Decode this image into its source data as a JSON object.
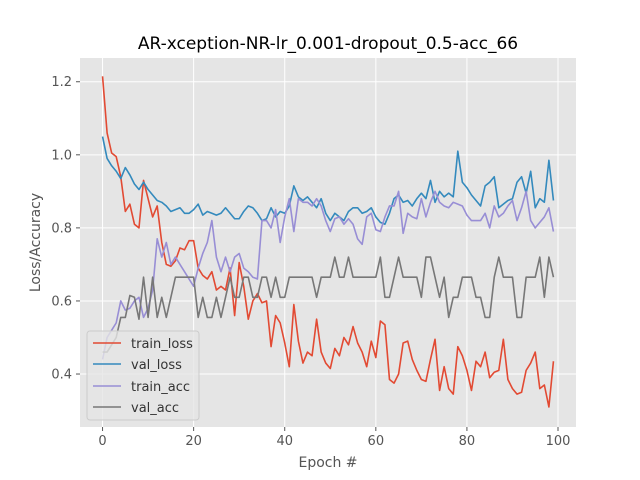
{
  "chart_data": {
    "type": "line",
    "title": "AR-xception-NR-lr_0.001-dropout_0.5-acc_66",
    "xlabel": "Epoch #",
    "ylabel": "Loss/Accuracy",
    "xlim": [
      -4.95,
      103.95
    ],
    "ylim": [
      0.255,
      1.265
    ],
    "xticks": [
      0,
      20,
      40,
      60,
      80,
      100
    ],
    "yticks": [
      0.4,
      0.6,
      0.8,
      1.0,
      1.2
    ],
    "xtick_labels": [
      "0",
      "20",
      "40",
      "60",
      "80",
      "100"
    ],
    "ytick_labels": [
      "0.4",
      "0.6",
      "0.8",
      "1.0",
      "1.2"
    ],
    "grid": true,
    "legend_position": "lower left",
    "series": [
      {
        "name": "train_loss",
        "color": "#E24A33",
        "values": [
          1.215,
          1.06,
          1.005,
          0.995,
          0.94,
          0.845,
          0.865,
          0.81,
          0.8,
          0.93,
          0.88,
          0.83,
          0.86,
          0.76,
          0.7,
          0.695,
          0.71,
          0.745,
          0.74,
          0.765,
          0.765,
          0.69,
          0.67,
          0.66,
          0.68,
          0.63,
          0.64,
          0.63,
          0.69,
          0.56,
          0.705,
          0.64,
          0.55,
          0.6,
          0.62,
          0.595,
          0.6,
          0.475,
          0.56,
          0.54,
          0.485,
          0.42,
          0.59,
          0.49,
          0.43,
          0.46,
          0.45,
          0.55,
          0.46,
          0.43,
          0.415,
          0.47,
          0.45,
          0.5,
          0.48,
          0.53,
          0.485,
          0.46,
          0.42,
          0.49,
          0.445,
          0.545,
          0.535,
          0.385,
          0.375,
          0.4,
          0.485,
          0.49,
          0.44,
          0.41,
          0.385,
          0.38,
          0.44,
          0.495,
          0.355,
          0.42,
          0.36,
          0.345,
          0.475,
          0.45,
          0.41,
          0.355,
          0.435,
          0.42,
          0.46,
          0.39,
          0.405,
          0.41,
          0.495,
          0.385,
          0.36,
          0.345,
          0.35,
          0.41,
          0.43,
          0.46,
          0.36,
          0.37,
          0.31,
          0.435
        ]
      },
      {
        "name": "val_loss",
        "color": "#348ABD",
        "values": [
          1.05,
          0.99,
          0.97,
          0.955,
          0.935,
          0.965,
          0.945,
          0.92,
          0.905,
          0.925,
          0.905,
          0.89,
          0.875,
          0.87,
          0.86,
          0.845,
          0.85,
          0.855,
          0.84,
          0.84,
          0.85,
          0.865,
          0.835,
          0.845,
          0.84,
          0.835,
          0.84,
          0.855,
          0.84,
          0.825,
          0.825,
          0.845,
          0.86,
          0.855,
          0.84,
          0.82,
          0.825,
          0.855,
          0.83,
          0.845,
          0.84,
          0.86,
          0.915,
          0.885,
          0.875,
          0.885,
          0.87,
          0.855,
          0.88,
          0.84,
          0.82,
          0.84,
          0.83,
          0.82,
          0.845,
          0.855,
          0.855,
          0.84,
          0.845,
          0.855,
          0.83,
          0.815,
          0.81,
          0.84,
          0.88,
          0.89,
          0.87,
          0.875,
          0.86,
          0.88,
          0.895,
          0.88,
          0.93,
          0.87,
          0.9,
          0.885,
          0.895,
          0.885,
          1.01,
          0.925,
          0.91,
          0.89,
          0.875,
          0.86,
          0.915,
          0.925,
          0.94,
          0.855,
          0.865,
          0.875,
          0.88,
          0.925,
          0.94,
          0.895,
          0.955,
          0.855,
          0.88,
          0.87,
          0.985,
          0.875
        ]
      },
      {
        "name": "train_acc",
        "color": "#988ED5",
        "values": [
          0.44,
          0.5,
          0.52,
          0.54,
          0.6,
          0.575,
          0.58,
          0.6,
          0.61,
          0.555,
          0.58,
          0.63,
          0.77,
          0.72,
          0.76,
          0.7,
          0.72,
          0.7,
          0.68,
          0.66,
          0.64,
          0.69,
          0.73,
          0.76,
          0.82,
          0.72,
          0.68,
          0.72,
          0.68,
          0.72,
          0.73,
          0.69,
          0.68,
          0.665,
          0.66,
          0.82,
          0.82,
          0.8,
          0.85,
          0.76,
          0.83,
          0.88,
          0.79,
          0.88,
          0.87,
          0.87,
          0.86,
          0.88,
          0.86,
          0.82,
          0.79,
          0.825,
          0.83,
          0.81,
          0.825,
          0.81,
          0.77,
          0.755,
          0.83,
          0.84,
          0.795,
          0.79,
          0.83,
          0.86,
          0.86,
          0.9,
          0.785,
          0.84,
          0.83,
          0.825,
          0.88,
          0.83,
          0.87,
          0.9,
          0.87,
          0.86,
          0.855,
          0.87,
          0.865,
          0.86,
          0.835,
          0.82,
          0.82,
          0.82,
          0.84,
          0.8,
          0.86,
          0.83,
          0.84,
          0.86,
          0.875,
          0.82,
          0.855,
          0.9,
          0.82,
          0.8,
          0.815,
          0.83,
          0.855,
          0.79
        ]
      },
      {
        "name": "val_acc",
        "color": "#777777",
        "values": [
          0.46,
          0.46,
          0.48,
          0.5,
          0.555,
          0.555,
          0.615,
          0.61,
          0.55,
          0.665,
          0.555,
          0.665,
          0.555,
          0.61,
          0.555,
          0.61,
          0.665,
          0.665,
          0.665,
          0.665,
          0.665,
          0.555,
          0.61,
          0.555,
          0.555,
          0.61,
          0.555,
          0.61,
          0.665,
          0.61,
          0.61,
          0.665,
          0.665,
          0.61,
          0.61,
          0.665,
          0.665,
          0.61,
          0.665,
          0.61,
          0.61,
          0.665,
          0.665,
          0.665,
          0.665,
          0.665,
          0.665,
          0.61,
          0.665,
          0.665,
          0.665,
          0.72,
          0.665,
          0.665,
          0.72,
          0.665,
          0.665,
          0.665,
          0.665,
          0.665,
          0.665,
          0.72,
          0.61,
          0.61,
          0.665,
          0.72,
          0.665,
          0.665,
          0.665,
          0.665,
          0.61,
          0.72,
          0.72,
          0.665,
          0.61,
          0.665,
          0.555,
          0.61,
          0.61,
          0.665,
          0.665,
          0.665,
          0.61,
          0.61,
          0.555,
          0.555,
          0.665,
          0.72,
          0.665,
          0.665,
          0.665,
          0.555,
          0.555,
          0.665,
          0.665,
          0.665,
          0.72,
          0.61,
          0.72,
          0.665
        ]
      }
    ]
  }
}
